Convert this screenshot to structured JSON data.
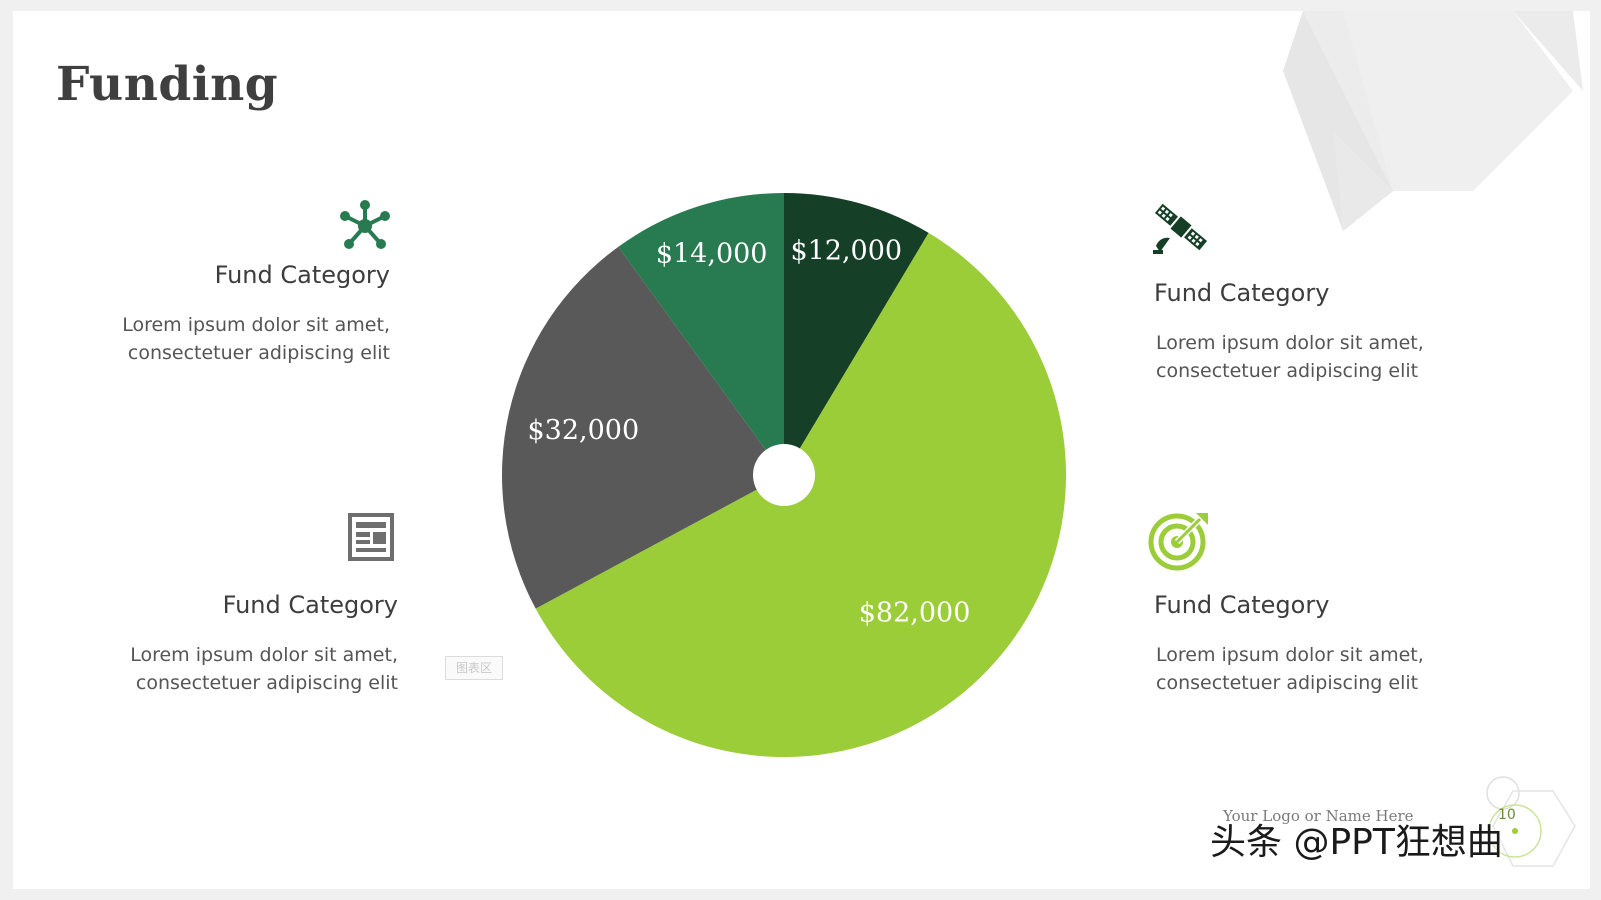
{
  "slide": {
    "title": "Funding"
  },
  "categories": [
    {
      "title": "Fund Category",
      "desc_line1": "Lorem ipsum dolor sit amet,",
      "desc_line2": "consectetuer adipiscing elit",
      "icon": "network-icon"
    },
    {
      "title": "Fund Category",
      "desc_line1": "Lorem ipsum dolor sit amet,",
      "desc_line2": "consectetuer adipiscing elit",
      "icon": "newspaper-icon"
    },
    {
      "title": "Fund Category",
      "desc_line1": "Lorem ipsum dolor sit amet,",
      "desc_line2": "consectetuer adipiscing elit",
      "icon": "satellite-icon"
    },
    {
      "title": "Fund Category",
      "desc_line1": "Lorem ipsum dolor sit amet,",
      "desc_line2": "consectetuer adipiscing elit",
      "icon": "target-icon"
    }
  ],
  "chart_area_label": "图表区",
  "footer": {
    "logo_text": "Your Logo or Name Here",
    "page_number": "10"
  },
  "watermark": "头条 @PPT狂想曲",
  "chart_data": {
    "type": "pie",
    "title": "",
    "categories": [
      "",
      "",
      "",
      ""
    ],
    "values": [
      12000,
      82000,
      32000,
      14000
    ],
    "labels": [
      "$12,000",
      "$82,000",
      "$32,000",
      "$14,000"
    ],
    "colors": [
      "#163f28",
      "#9acd38",
      "#595959",
      "#287a50"
    ],
    "start_angle_deg": 0,
    "direction": "clockwise",
    "center_hole": true
  }
}
